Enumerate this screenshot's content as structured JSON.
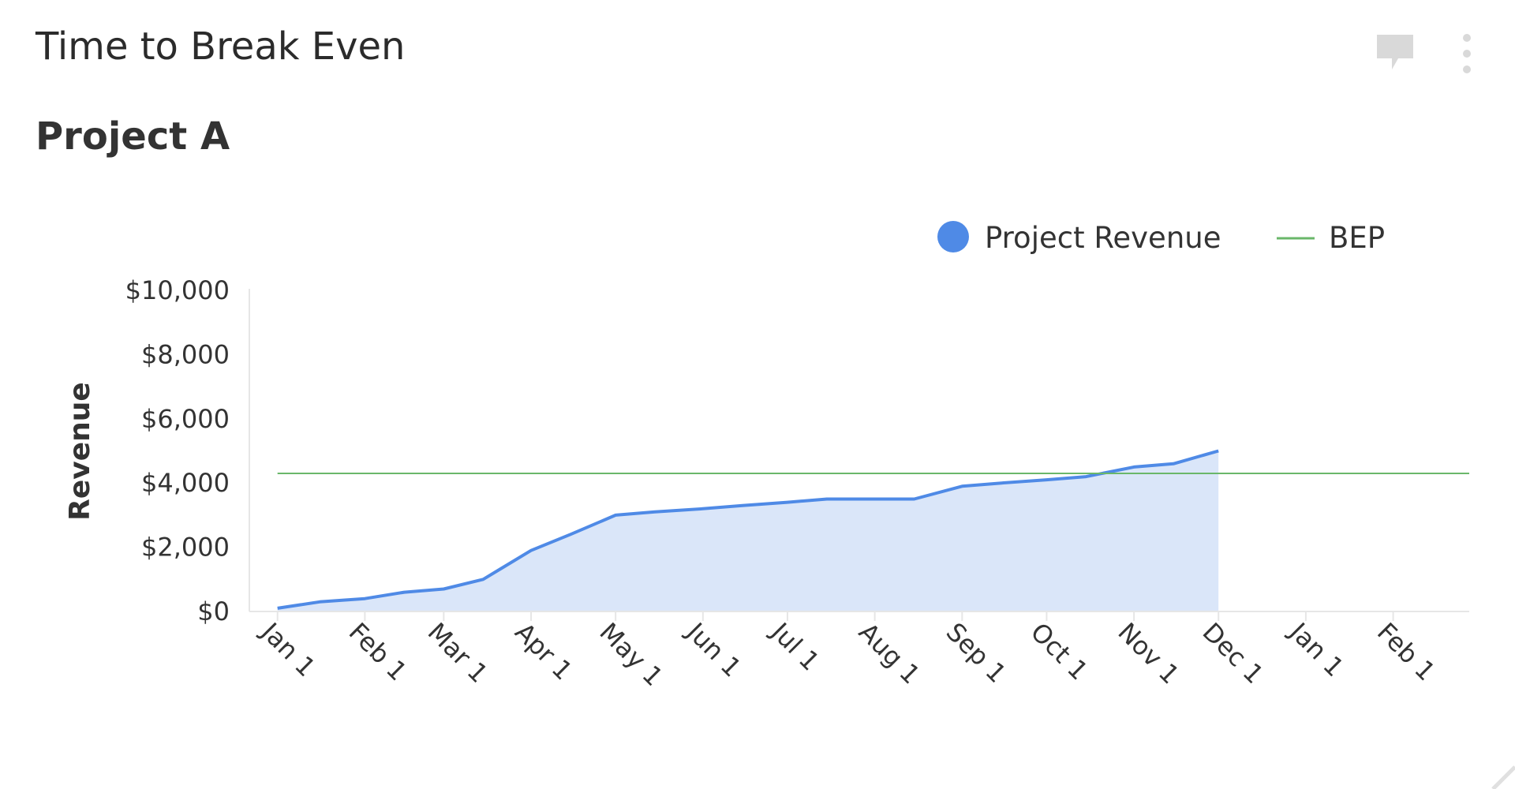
{
  "widget": {
    "title": "Time to Break Even",
    "subtitle": "Project A"
  },
  "icons": {
    "comment": "comment-icon",
    "more": "more-vertical-icon",
    "resize": "resize-handle-icon"
  },
  "chart_data": {
    "type": "area",
    "ylabel": "Revenue",
    "xlabel": "",
    "ylim": [
      0,
      10000
    ],
    "yticks": [
      0,
      2000,
      4000,
      6000,
      8000,
      10000
    ],
    "ytick_labels": [
      "$0",
      "$2,000",
      "$4,000",
      "$6,000",
      "$8,000",
      "$10,000"
    ],
    "xlim": [
      "Jan 1",
      "Feb 28 (next year)"
    ],
    "xtick_labels": [
      "Jan 1",
      "Feb 1",
      "Mar 1",
      "Apr 1",
      "May 1",
      "Jun 1",
      "Jul 1",
      "Aug 1",
      "Sep 1",
      "Oct 1",
      "Nov 1",
      "Dec 1",
      "Jan 1",
      "Feb 1"
    ],
    "grid": false,
    "legend_position": "top-right",
    "series": [
      {
        "name": "Project Revenue",
        "type": "area",
        "color": "#4f8ae6",
        "fill": "#dae6f9",
        "points": [
          [
            "Jan 1",
            100
          ],
          [
            "Jan 16",
            300
          ],
          [
            "Feb 1",
            400
          ],
          [
            "Feb 15",
            600
          ],
          [
            "Mar 1",
            700
          ],
          [
            "Mar 15",
            1000
          ],
          [
            "Apr 1",
            1900
          ],
          [
            "Apr 15",
            2400
          ],
          [
            "May 1",
            3000
          ],
          [
            "May 15",
            3100
          ],
          [
            "Jun 1",
            3200
          ],
          [
            "Jun 15",
            3300
          ],
          [
            "Jul 1",
            3400
          ],
          [
            "Jul 15",
            3500
          ],
          [
            "Aug 1",
            3500
          ],
          [
            "Aug 15",
            3500
          ],
          [
            "Sep 1",
            3900
          ],
          [
            "Sep 15",
            4000
          ],
          [
            "Oct 1",
            4100
          ],
          [
            "Oct 15",
            4200
          ],
          [
            "Nov 1",
            4500
          ],
          [
            "Nov 15",
            4600
          ],
          [
            "Dec 1",
            5000
          ]
        ]
      },
      {
        "name": "BEP",
        "type": "line",
        "color": "#6ab76a",
        "value": 4300
      }
    ]
  }
}
